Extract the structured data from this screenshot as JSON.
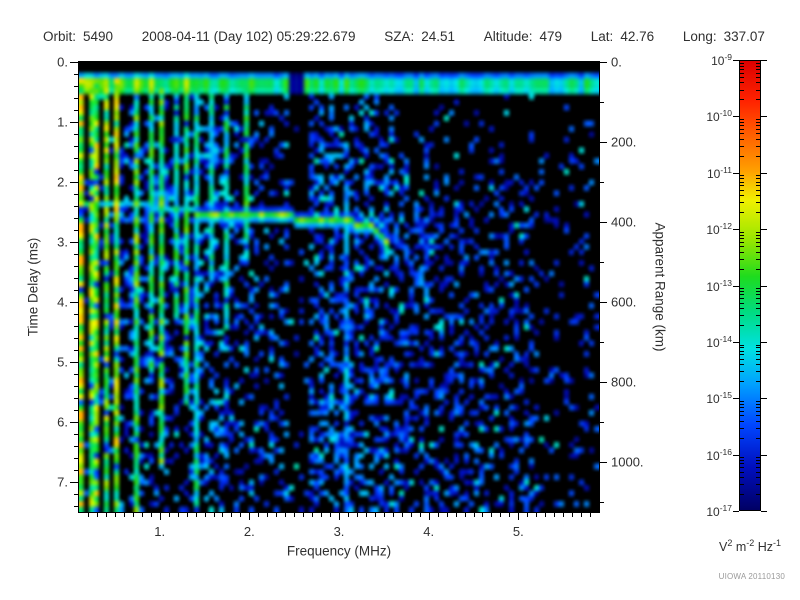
{
  "header": {
    "fields": [
      {
        "label": "Orbit:",
        "value": "5490"
      },
      {
        "label": "",
        "value": "2008-04-11 (Day 102) 05:29:22.679"
      },
      {
        "label": "SZA:",
        "value": "24.51"
      },
      {
        "label": "Altitude:",
        "value": "479"
      },
      {
        "label": "Lat:",
        "value": "42.76"
      },
      {
        "label": "Long:",
        "value": "337.07"
      }
    ]
  },
  "watermark": "UIOWA 20110130",
  "chart_data": {
    "type": "heatmap",
    "title": "",
    "xlabel": "Frequency (MHz)",
    "ylabel": "Time Delay (ms)",
    "y2label": "Apparent Range (km)",
    "x_range_mhz": [
      0.1,
      5.9
    ],
    "x_tick_values": [
      1,
      2,
      3,
      4,
      5
    ],
    "x_tick_labels": [
      "1.",
      "2.",
      "3.",
      "4.",
      "5."
    ],
    "x_minor_step_mhz": 0.1,
    "y_range_ms": [
      0,
      7.5
    ],
    "y_tick_values": [
      0,
      1,
      2,
      3,
      4,
      5,
      6,
      7
    ],
    "y_tick_labels": [
      "0.",
      "1.",
      "2.",
      "3.",
      "4.",
      "5.",
      "6.",
      "7."
    ],
    "y_minor_step_ms": 0.2,
    "y2_tick_values_km": [
      0,
      200,
      400,
      600,
      800,
      1000
    ],
    "y2_tick_labels": [
      "0.",
      "200.",
      "400.",
      "600.",
      "800.",
      "1000."
    ],
    "y2_minor_step_km": 100,
    "km_per_ms": 150,
    "grid": false,
    "colorbar": {
      "unit_parts": [
        [
          "V",
          "2"
        ],
        [
          "m",
          "-2"
        ],
        [
          "Hz",
          "-1"
        ]
      ],
      "exponent_ticks": [
        -9,
        -10,
        -11,
        -12,
        -13,
        -14,
        -15,
        -16,
        -17
      ],
      "scale": "log10",
      "gradient_stops": [
        {
          "pos": 0.0,
          "color": "#000064"
        },
        {
          "pos": 0.095,
          "color": "#000fbe"
        },
        {
          "pos": 0.19,
          "color": "#0046ff"
        },
        {
          "pos": 0.28,
          "color": "#00a0ff"
        },
        {
          "pos": 0.36,
          "color": "#00e1e1"
        },
        {
          "pos": 0.44,
          "color": "#00dc82"
        },
        {
          "pos": 0.52,
          "color": "#1edc1e"
        },
        {
          "pos": 0.6,
          "color": "#96e600"
        },
        {
          "pos": 0.69,
          "color": "#f0f000"
        },
        {
          "pos": 0.755,
          "color": "#ffa000"
        },
        {
          "pos": 0.83,
          "color": "#ff6400"
        },
        {
          "pos": 0.91,
          "color": "#ff2300"
        },
        {
          "pos": 1.0,
          "color": "#dc0000"
        }
      ]
    },
    "features": {
      "noise_seed": 7,
      "leakage_band": {
        "delay_ms": [
          0.22,
          0.45
        ],
        "segments": [
          {
            "f": [
              0.1,
              1.5
            ],
            "v": 0.52
          },
          {
            "f": [
              1.5,
              2.45
            ],
            "v": 0.44
          },
          {
            "f": [
              2.45,
              2.62
            ],
            "v": 0.05
          },
          {
            "f": [
              2.62,
              3.4
            ],
            "v": 0.44
          },
          {
            "f": [
              3.4,
              5.75
            ],
            "v": 0.38
          },
          {
            "f": [
              5.75,
              5.9
            ],
            "v": 0.46
          }
        ]
      },
      "plasma_lines": [
        {
          "f": 0.12,
          "v": 0.68,
          "d1": 7.5
        },
        {
          "f": 0.19,
          "v": 0.58,
          "d1": 7.5
        },
        {
          "f": 0.26,
          "v": 0.62,
          "d1": 7.5
        },
        {
          "f": 0.37,
          "v": 0.6,
          "d1": 7.5
        },
        {
          "f": 0.5,
          "v": 0.62,
          "d1": 7.5
        },
        {
          "f": 0.72,
          "v": 0.55,
          "d1": 7.5
        },
        {
          "f": 0.87,
          "v": 0.5,
          "d1": 5.2
        },
        {
          "f": 1.02,
          "v": 0.55,
          "d1": 6.6
        },
        {
          "f": 1.14,
          "v": 0.45,
          "d1": 4.2
        },
        {
          "f": 1.28,
          "v": 0.5,
          "d1": 5.6
        },
        {
          "f": 1.4,
          "v": 0.42,
          "d1": 7.5
        },
        {
          "f": 1.53,
          "v": 0.4,
          "d1": 3.6
        },
        {
          "f": 1.69,
          "v": 0.45,
          "d1": 4.4
        },
        {
          "f": 1.92,
          "v": 0.48,
          "d1": 3.2
        },
        {
          "f": 3.07,
          "v": 0.3,
          "d0": 2.0,
          "d1": 7.5
        }
      ],
      "echo_trace": {
        "points": [
          [
            0.11,
            2.32
          ],
          [
            0.8,
            2.36
          ],
          [
            1.33,
            2.41
          ],
          [
            1.42,
            2.47
          ],
          [
            2.0,
            2.51
          ],
          [
            2.6,
            2.55
          ],
          [
            3.1,
            2.61
          ],
          [
            3.35,
            2.68
          ],
          [
            3.45,
            2.8
          ],
          [
            3.5,
            2.95
          ]
        ],
        "bright_from_mhz": 1.38,
        "v_faint": 0.34,
        "v_bright": 0.56
      },
      "noise_regions": [
        {
          "f": [
            0.1,
            0.55
          ],
          "density": 0.2,
          "v": [
            0.06,
            0.3
          ]
        },
        {
          "f": [
            0.55,
            1.35
          ],
          "density": 0.32,
          "v": [
            0.06,
            0.32
          ]
        },
        {
          "f": [
            1.35,
            1.8
          ],
          "density": 0.42,
          "v": [
            0.08,
            0.34
          ]
        },
        {
          "f": [
            1.8,
            2.42
          ],
          "density": 0.3,
          "v": [
            0.06,
            0.32
          ]
        },
        {
          "f": [
            2.42,
            2.68
          ],
          "density": 0.07,
          "v": [
            0.06,
            0.24
          ]
        },
        {
          "f": [
            2.68,
            3.6
          ],
          "density": 0.46,
          "v": [
            0.08,
            0.32
          ]
        },
        {
          "f": [
            3.6,
            4.4
          ],
          "density": 0.42,
          "v": [
            0.06,
            0.28
          ]
        },
        {
          "f": [
            4.4,
            5.2
          ],
          "density": 0.3,
          "v": [
            0.06,
            0.28
          ]
        },
        {
          "f": [
            5.2,
            5.9
          ],
          "density": 0.15,
          "v": [
            0.06,
            0.26
          ]
        }
      ]
    }
  }
}
